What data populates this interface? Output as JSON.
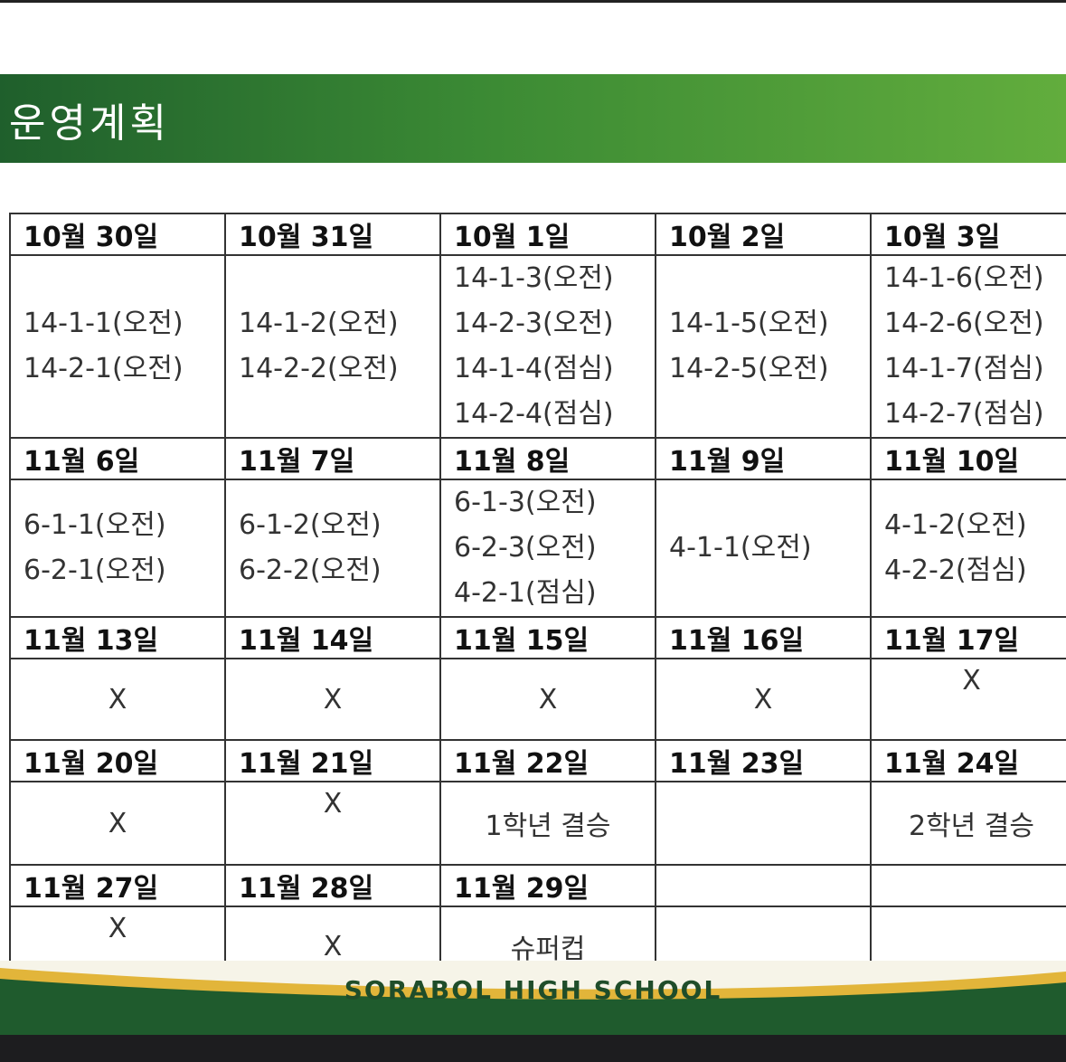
{
  "title": "운영계획",
  "footer": "SORABOL HIGH SCHOOL",
  "colors": {
    "title_gradient_start": "#1f5f2c",
    "title_gradient_end": "#62ad3d",
    "footer_green": "#1f5b2d",
    "footer_gold": "#e2b53a"
  },
  "schedule": [
    {
      "dates": [
        "10월 30일",
        "10월 31일",
        "10월 1일",
        "10월 2일",
        "10월 3일"
      ],
      "cells": [
        [
          "14-1-1(오전)",
          "14-2-1(오전)"
        ],
        [
          "14-1-2(오전)",
          "14-2-2(오전)"
        ],
        [
          "14-1-3(오전)",
          "14-2-3(오전)",
          "14-1-4(점심)",
          "14-2-4(점심)"
        ],
        [
          "14-1-5(오전)",
          "14-2-5(오전)"
        ],
        [
          "14-1-6(오전)",
          "14-2-6(오전)",
          "14-1-7(점심)",
          "14-2-7(점심)"
        ]
      ]
    },
    {
      "dates": [
        "11월 6일",
        "11월 7일",
        "11월 8일",
        "11월 9일",
        "11월 10일"
      ],
      "cells": [
        [
          "6-1-1(오전)",
          "6-2-1(오전)"
        ],
        [
          "6-1-2(오전)",
          "6-2-2(오전)"
        ],
        [
          "6-1-3(오전)",
          "6-2-3(오전)",
          "4-2-1(점심)"
        ],
        [
          "4-1-1(오전)"
        ],
        [
          "4-1-2(오전)",
          "4-2-2(점심)"
        ]
      ]
    },
    {
      "dates": [
        "11월 13일",
        "11월 14일",
        "11월 15일",
        "11월 16일",
        "11월 17일"
      ],
      "cells": [
        "X",
        "X",
        "X",
        "X",
        "X"
      ]
    },
    {
      "dates": [
        "11월 20일",
        "11월 21일",
        "11월 22일",
        "11월 23일",
        "11월 24일"
      ],
      "cells": [
        "X",
        "X",
        "1학년  결승",
        "",
        "2학년  결승"
      ]
    },
    {
      "dates": [
        "11월 27일",
        "11월 28일",
        "11월 29일",
        "",
        ""
      ],
      "cells": [
        "X",
        "X",
        "슈퍼컵",
        "",
        ""
      ]
    }
  ]
}
